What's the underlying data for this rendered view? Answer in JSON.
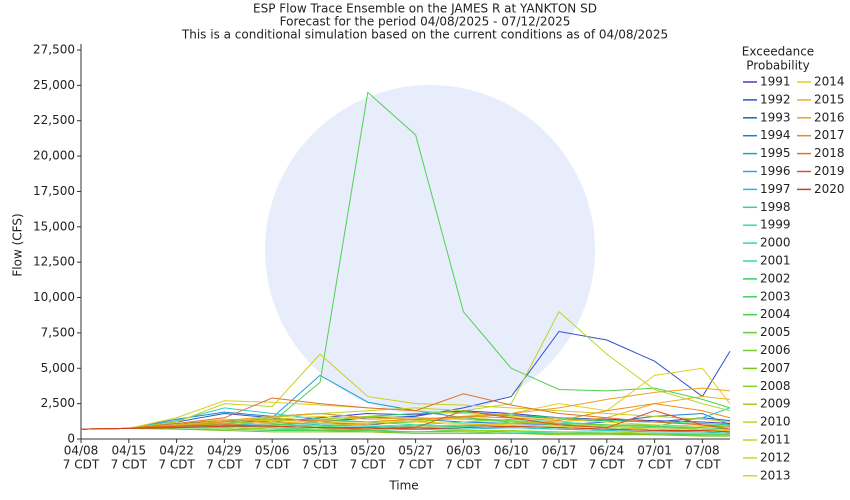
{
  "chart_data": {
    "type": "line",
    "title": "ESP Flow Trace Ensemble on the JAMES R at YANKTON SD",
    "subtitle": "Forecast for the period 04/08/2025 - 07/12/2025",
    "note": "This is a conditional simulation based on the current conditions as of 04/08/2025",
    "x_label": "Time",
    "y_label": "Flow (CFS)",
    "legend_title": [
      "Exceedance",
      "Probability"
    ],
    "category_sublabel": "7 CDT",
    "categories": [
      "04/08",
      "04/15",
      "04/22",
      "04/29",
      "05/06",
      "05/13",
      "05/20",
      "05/27",
      "06/03",
      "06/10",
      "06/17",
      "06/24",
      "07/01",
      "07/08",
      null
    ],
    "ylim": [
      0,
      27500
    ],
    "yticks": [
      0,
      {
        "value": 2500,
        "label": "2,500"
      },
      {
        "value": 5000,
        "label": "5,000"
      },
      {
        "value": 7500,
        "label": "7,500"
      },
      {
        "value": 10000,
        "label": "10,000"
      },
      {
        "value": 12500,
        "label": "12,500"
      },
      {
        "value": 15000,
        "label": "15,000"
      },
      {
        "value": 17500,
        "label": "17,500"
      },
      {
        "value": 20000,
        "label": "20,000"
      },
      {
        "value": 22500,
        "label": "22,500"
      },
      {
        "value": 25000,
        "label": "25,000"
      },
      {
        "value": 27500,
        "label": "27,500"
      }
    ],
    "grid": false,
    "series": [
      {
        "name": "1991",
        "color": "#4040c0",
        "values": [
          700,
          750,
          1100,
          1300,
          1200,
          1500,
          1800,
          1700,
          2000,
          1800,
          1500,
          1400,
          1300,
          1200,
          1100
        ]
      },
      {
        "name": "1992",
        "color": "#3050d0",
        "values": [
          700,
          750,
          900,
          1000,
          1000,
          1200,
          1500,
          1600,
          2200,
          3000,
          7600,
          7000,
          5500,
          3000,
          6200
        ]
      },
      {
        "name": "1993",
        "color": "#2060c0",
        "values": [
          700,
          750,
          1200,
          1800,
          1500,
          1200,
          1000,
          1300,
          1600,
          1700,
          1400,
          1300,
          1200,
          1500,
          1300
        ]
      },
      {
        "name": "1994",
        "color": "#2080d0",
        "values": [
          700,
          750,
          1400,
          1900,
          1600,
          1800,
          1500,
          1400,
          1200,
          1100,
          1000,
          1200,
          1600,
          1800,
          1000
        ]
      },
      {
        "name": "1995",
        "color": "#20a0d0",
        "values": [
          700,
          750,
          1000,
          1200,
          1500,
          4500,
          2600,
          2000,
          1500,
          1200,
          1000,
          800,
          700,
          600,
          500
        ]
      },
      {
        "name": "1996",
        "color": "#20b0e0",
        "values": [
          700,
          750,
          1000,
          1100,
          900,
          800,
          700,
          900,
          1000,
          900,
          800,
          700,
          600,
          500,
          400
        ]
      },
      {
        "name": "1997",
        "color": "#20c0d0",
        "values": [
          700,
          750,
          900,
          1000,
          1200,
          1000,
          900,
          800,
          700,
          800,
          700,
          600,
          500,
          500,
          400
        ]
      },
      {
        "name": "1998",
        "color": "#30d0c0",
        "values": [
          700,
          750,
          1300,
          2200,
          1800,
          1400,
          1200,
          1000,
          900,
          800,
          700,
          600,
          900,
          1500,
          2200
        ]
      },
      {
        "name": "1999",
        "color": "#30e0b0",
        "values": [
          700,
          750,
          800,
          900,
          800,
          700,
          600,
          700,
          600,
          500,
          500,
          400,
          400,
          300,
          300
        ]
      },
      {
        "name": "2000",
        "color": "#30e0a0",
        "values": [
          700,
          750,
          1000,
          1200,
          1100,
          900,
          800,
          1000,
          1200,
          1400,
          1200,
          1000,
          900,
          700,
          600
        ]
      },
      {
        "name": "2001",
        "color": "#30e090",
        "values": [
          700,
          750,
          900,
          800,
          700,
          600,
          500,
          500,
          600,
          500,
          400,
          400,
          300,
          300,
          300
        ]
      },
      {
        "name": "2002",
        "color": "#30d070",
        "values": [
          700,
          750,
          800,
          900,
          1000,
          1200,
          1600,
          1800,
          1900,
          1700,
          1500,
          1300,
          1200,
          1100,
          1000
        ]
      },
      {
        "name": "2003",
        "color": "#40d060",
        "values": [
          700,
          750,
          700,
          700,
          600,
          600,
          700,
          800,
          900,
          1200,
          1100,
          1000,
          900,
          800,
          700
        ]
      },
      {
        "name": "2004",
        "color": "#50d050",
        "values": [
          700,
          750,
          900,
          1000,
          1200,
          4000,
          24500,
          21500,
          9000,
          5000,
          3500,
          3400,
          3600,
          2800,
          2200
        ]
      },
      {
        "name": "2005",
        "color": "#60d040",
        "values": [
          700,
          750,
          800,
          800,
          700,
          600,
          600,
          500,
          500,
          400,
          400,
          400,
          300,
          300,
          300
        ]
      },
      {
        "name": "2006",
        "color": "#70d030",
        "values": [
          700,
          750,
          800,
          900,
          1000,
          900,
          1100,
          1200,
          1500,
          1300,
          1100,
          1000,
          1000,
          900,
          900
        ]
      },
      {
        "name": "2007",
        "color": "#80c020",
        "values": [
          700,
          750,
          700,
          600,
          500,
          500,
          500,
          400,
          400,
          400,
          300,
          300,
          300,
          200,
          200
        ]
      },
      {
        "name": "2008",
        "color": "#90d020",
        "values": [
          700,
          750,
          900,
          1100,
          1300,
          1400,
          1600,
          1500,
          1400,
          1200,
          1000,
          900,
          800,
          700,
          600
        ]
      },
      {
        "name": "2009",
        "color": "#a0d020",
        "values": [
          700,
          750,
          800,
          800,
          700,
          700,
          800,
          700,
          600,
          600,
          500,
          500,
          400,
          400,
          400
        ]
      },
      {
        "name": "2010",
        "color": "#b8d828",
        "values": [
          700,
          750,
          1000,
          1300,
          1500,
          1800,
          2000,
          2200,
          2000,
          2500,
          9000,
          6000,
          3500,
          2500,
          2000
        ]
      },
      {
        "name": "2011",
        "color": "#c8d020",
        "values": [
          700,
          750,
          1200,
          2500,
          2300,
          6000,
          3000,
          2500,
          2400,
          2200,
          2000,
          1800,
          1600,
          1400,
          1200
        ]
      },
      {
        "name": "2012",
        "color": "#d8d020",
        "values": [
          700,
          750,
          1500,
          2700,
          2600,
          2400,
          2200,
          2000,
          1800,
          1600,
          1400,
          1200,
          1000,
          900,
          800
        ]
      },
      {
        "name": "2013",
        "color": "#e0d020",
        "values": [
          700,
          750,
          1100,
          1400,
          1300,
          1200,
          1100,
          1300,
          1500,
          1800,
          2500,
          2000,
          4500,
          5000,
          2500
        ]
      },
      {
        "name": "2014",
        "color": "#e8c820",
        "values": [
          700,
          750,
          1000,
          1200,
          1400,
          1600,
          1400,
          1200,
          1100,
          1000,
          900,
          800,
          700,
          600,
          600
        ]
      },
      {
        "name": "2015",
        "color": "#f0b020",
        "values": [
          700,
          750,
          900,
          1000,
          1200,
          1100,
          1000,
          900,
          1000,
          1100,
          1200,
          1500,
          2500,
          3000,
          2800
        ]
      },
      {
        "name": "2016",
        "color": "#f0a020",
        "values": [
          700,
          750,
          1000,
          1300,
          1600,
          1800,
          1500,
          1400,
          1500,
          1800,
          2200,
          2800,
          3300,
          3600,
          3400
        ]
      },
      {
        "name": "2017",
        "color": "#f08a20",
        "values": [
          700,
          750,
          900,
          1200,
          1400,
          1300,
          1200,
          1400,
          1600,
          1500,
          1300,
          2000,
          2500,
          2000,
          1500
        ]
      },
      {
        "name": "2018",
        "color": "#e07030",
        "values": [
          700,
          750,
          1100,
          1500,
          2900,
          2500,
          2200,
          2000,
          3200,
          2400,
          1800,
          1500,
          1200,
          1000,
          900
        ]
      },
      {
        "name": "2019",
        "color": "#e05030",
        "values": [
          700,
          750,
          900,
          1000,
          900,
          800,
          700,
          800,
          2000,
          1500,
          1000,
          800,
          2000,
          1000,
          700
        ]
      },
      {
        "name": "2020",
        "color": "#d04020",
        "values": [
          700,
          750,
          800,
          900,
          900,
          800,
          800,
          700,
          800,
          900,
          800,
          700,
          600,
          600,
          500
        ]
      }
    ]
  }
}
